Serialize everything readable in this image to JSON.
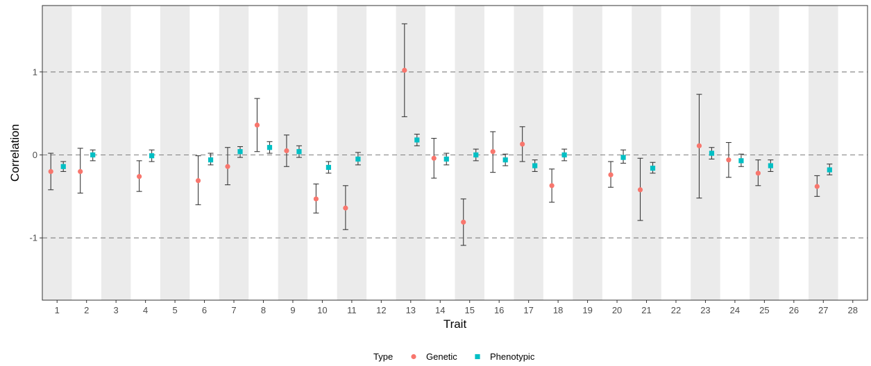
{
  "chart_data": {
    "type": "scatter",
    "subtype": "point-with-error-bars",
    "title": "",
    "xlabel": "Trait",
    "ylabel": "Correlation",
    "x_categories": [
      "1",
      "2",
      "3",
      "4",
      "5",
      "6",
      "7",
      "8",
      "9",
      "10",
      "11",
      "12",
      "13",
      "14",
      "15",
      "16",
      "17",
      "18",
      "19",
      "20",
      "21",
      "22",
      "23",
      "24",
      "25",
      "26",
      "27",
      "28"
    ],
    "ylim": [
      -1.75,
      1.8
    ],
    "y_ticks": [
      -1,
      0,
      1
    ],
    "y_tick_labels": [
      "-1",
      "0",
      "1"
    ],
    "reference_lines": [
      -1,
      0,
      1
    ],
    "background": "alternating grey/white vertical bands per trait",
    "legend": {
      "title": "Type",
      "position": "bottom",
      "entries": [
        "Genetic",
        "Phenotypic"
      ]
    },
    "series": [
      {
        "name": "Genetic",
        "color": "#F8766D",
        "marker": "circle",
        "points": [
          {
            "x": "1",
            "y": -0.2,
            "low": -0.42,
            "high": 0.02
          },
          {
            "x": "2",
            "y": -0.2,
            "low": -0.46,
            "high": 0.08
          },
          {
            "x": "4",
            "y": -0.26,
            "low": -0.44,
            "high": -0.07
          },
          {
            "x": "6",
            "y": -0.31,
            "low": -0.6,
            "high": -0.01
          },
          {
            "x": "7",
            "y": -0.14,
            "low": -0.36,
            "high": 0.09
          },
          {
            "x": "8",
            "y": 0.36,
            "low": 0.04,
            "high": 0.68
          },
          {
            "x": "9",
            "y": 0.05,
            "low": -0.14,
            "high": 0.24
          },
          {
            "x": "10",
            "y": -0.53,
            "low": -0.7,
            "high": -0.35
          },
          {
            "x": "11",
            "y": -0.64,
            "low": -0.9,
            "high": -0.37
          },
          {
            "x": "13",
            "y": 1.02,
            "low": 0.46,
            "high": 1.58
          },
          {
            "x": "14",
            "y": -0.04,
            "low": -0.28,
            "high": 0.2
          },
          {
            "x": "15",
            "y": -0.81,
            "low": -1.09,
            "high": -0.53
          },
          {
            "x": "16",
            "y": 0.04,
            "low": -0.21,
            "high": 0.28
          },
          {
            "x": "17",
            "y": 0.13,
            "low": -0.08,
            "high": 0.34
          },
          {
            "x": "18",
            "y": -0.37,
            "low": -0.57,
            "high": -0.17
          },
          {
            "x": "20",
            "y": -0.24,
            "low": -0.39,
            "high": -0.08
          },
          {
            "x": "21",
            "y": -0.42,
            "low": -0.79,
            "high": -0.04
          },
          {
            "x": "23",
            "y": 0.11,
            "low": -0.52,
            "high": 0.73
          },
          {
            "x": "24",
            "y": -0.06,
            "low": -0.27,
            "high": 0.15
          },
          {
            "x": "25",
            "y": -0.22,
            "low": -0.37,
            "high": -0.06
          },
          {
            "x": "27",
            "y": -0.38,
            "low": -0.5,
            "high": -0.25
          }
        ]
      },
      {
        "name": "Phenotypic",
        "color": "#00BFC4",
        "marker": "square",
        "points": [
          {
            "x": "1",
            "y": -0.14,
            "low": -0.2,
            "high": -0.08
          },
          {
            "x": "2",
            "y": 0.0,
            "low": -0.07,
            "high": 0.06
          },
          {
            "x": "4",
            "y": -0.01,
            "low": -0.08,
            "high": 0.06
          },
          {
            "x": "6",
            "y": -0.06,
            "low": -0.12,
            "high": 0.02
          },
          {
            "x": "7",
            "y": 0.04,
            "low": -0.03,
            "high": 0.1
          },
          {
            "x": "8",
            "y": 0.09,
            "low": 0.02,
            "high": 0.16
          },
          {
            "x": "9",
            "y": 0.04,
            "low": -0.03,
            "high": 0.11
          },
          {
            "x": "10",
            "y": -0.15,
            "low": -0.22,
            "high": -0.08
          },
          {
            "x": "11",
            "y": -0.05,
            "low": -0.12,
            "high": 0.03
          },
          {
            "x": "13",
            "y": 0.18,
            "low": 0.11,
            "high": 0.25
          },
          {
            "x": "14",
            "y": -0.05,
            "low": -0.12,
            "high": 0.02
          },
          {
            "x": "15",
            "y": 0.0,
            "low": -0.07,
            "high": 0.07
          },
          {
            "x": "16",
            "y": -0.06,
            "low": -0.13,
            "high": 0.01
          },
          {
            "x": "17",
            "y": -0.13,
            "low": -0.2,
            "high": -0.06
          },
          {
            "x": "18",
            "y": 0.0,
            "low": -0.07,
            "high": 0.07
          },
          {
            "x": "20",
            "y": -0.03,
            "low": -0.1,
            "high": 0.06
          },
          {
            "x": "21",
            "y": -0.16,
            "low": -0.22,
            "high": -0.09
          },
          {
            "x": "23",
            "y": 0.02,
            "low": -0.05,
            "high": 0.09
          },
          {
            "x": "24",
            "y": -0.07,
            "low": -0.14,
            "high": 0.01
          },
          {
            "x": "25",
            "y": -0.13,
            "low": -0.2,
            "high": -0.06
          },
          {
            "x": "27",
            "y": -0.18,
            "low": -0.24,
            "high": -0.11
          }
        ]
      }
    ]
  }
}
